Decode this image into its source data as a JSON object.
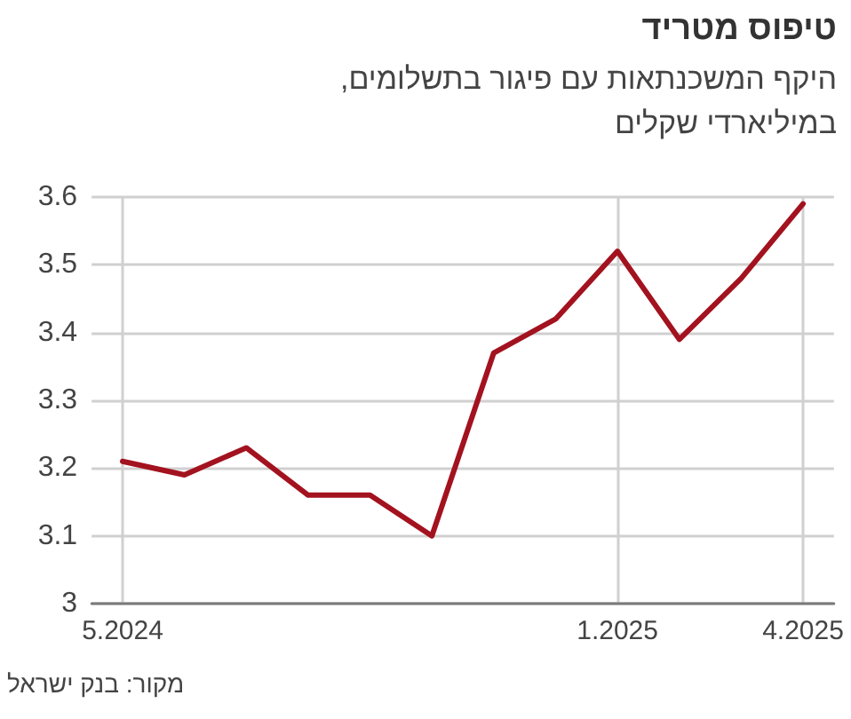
{
  "chart_data": {
    "type": "line",
    "title": "טיפוס מטריד",
    "subtitle": "היקף המשכנתאות עם פיגור בתשלומים, במיליארדי שקלים",
    "annotations": [
      "מקור: בנק ישראל"
    ],
    "categories": [
      "5.2024",
      null,
      null,
      null,
      null,
      null,
      null,
      null,
      "1.2025",
      null,
      null,
      "4.2025"
    ],
    "series": [
      {
        "color": "#a3121f",
        "values": [
          3.21,
          3.19,
          3.23,
          3.16,
          3.16,
          3.1,
          3.37,
          3.42,
          3.52,
          3.39,
          3.48,
          3.59
        ]
      }
    ],
    "ylim": [
      3,
      3.6
    ],
    "yticks": [
      3,
      3.1,
      3.2,
      3.3,
      3.4,
      3.5,
      3.6
    ],
    "grid": true,
    "marker": "none",
    "line_style": "solid"
  }
}
